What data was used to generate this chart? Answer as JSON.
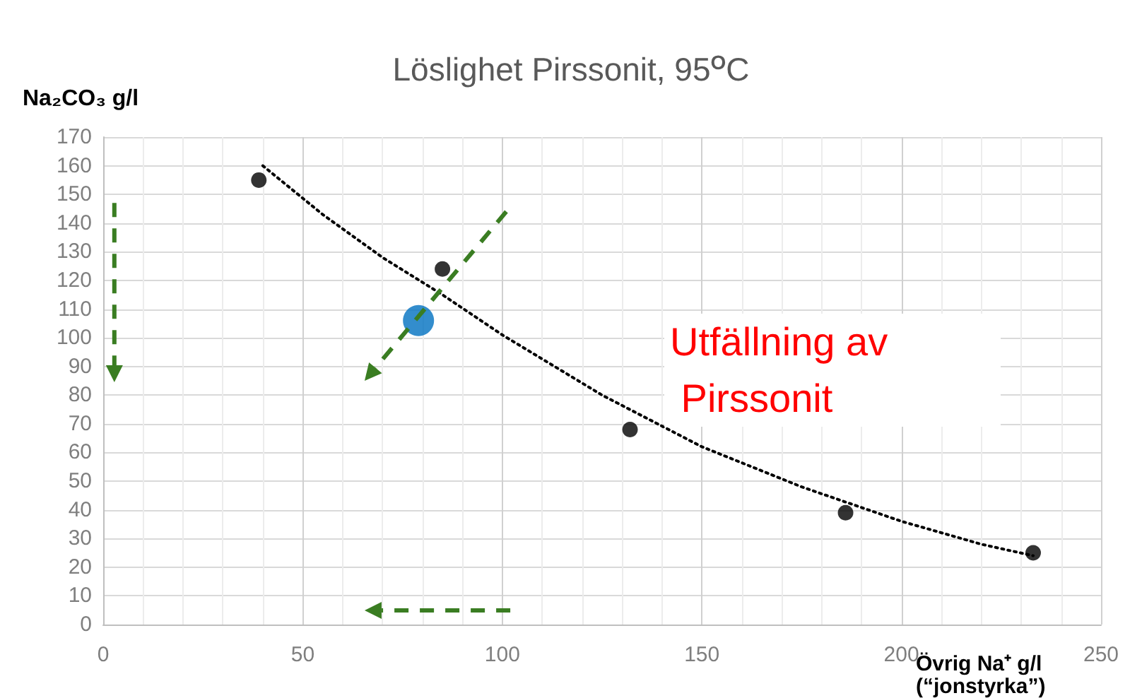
{
  "chart_data": {
    "type": "scatter",
    "title": "Löslighet Pirssonit, 95$^{O}$C",
    "xlabel": "Övrig Na⁺ g/l (“jonstyrka”)",
    "ylabel": "Na₂CO₃ g/l",
    "annotations": [
      "Utfällning av Pirssonit"
    ],
    "series": [
      {
        "color": "#000000",
        "x": [
          39,
          85,
          132,
          186,
          233
        ],
        "values": [
          155,
          124,
          68,
          39,
          25
        ]
      },
      {
        "color": "#0070c0",
        "x": [
          79
        ],
        "values": [
          106
        ]
      },
      {
        "type": "line",
        "color": "#000000",
        "line_style": "dotted",
        "marker": "none",
        "x": [
          40,
          55,
          70,
          85,
          100,
          125,
          150,
          175,
          200,
          220,
          233
        ],
        "values": [
          160,
          143,
          128,
          115,
          101,
          80,
          62,
          48,
          36,
          28,
          24
        ]
      }
    ],
    "marker": "circle",
    "grid": true,
    "xlim": [
      0,
      250
    ],
    "xticks": [
      0,
      50,
      100,
      150,
      200,
      250
    ],
    "ylim": [
      0,
      170
    ],
    "yticks": [
      0,
      10,
      20,
      30,
      40,
      50,
      60,
      70,
      80,
      90,
      100,
      110,
      120,
      130,
      140,
      150,
      160,
      170
    ]
  }
}
